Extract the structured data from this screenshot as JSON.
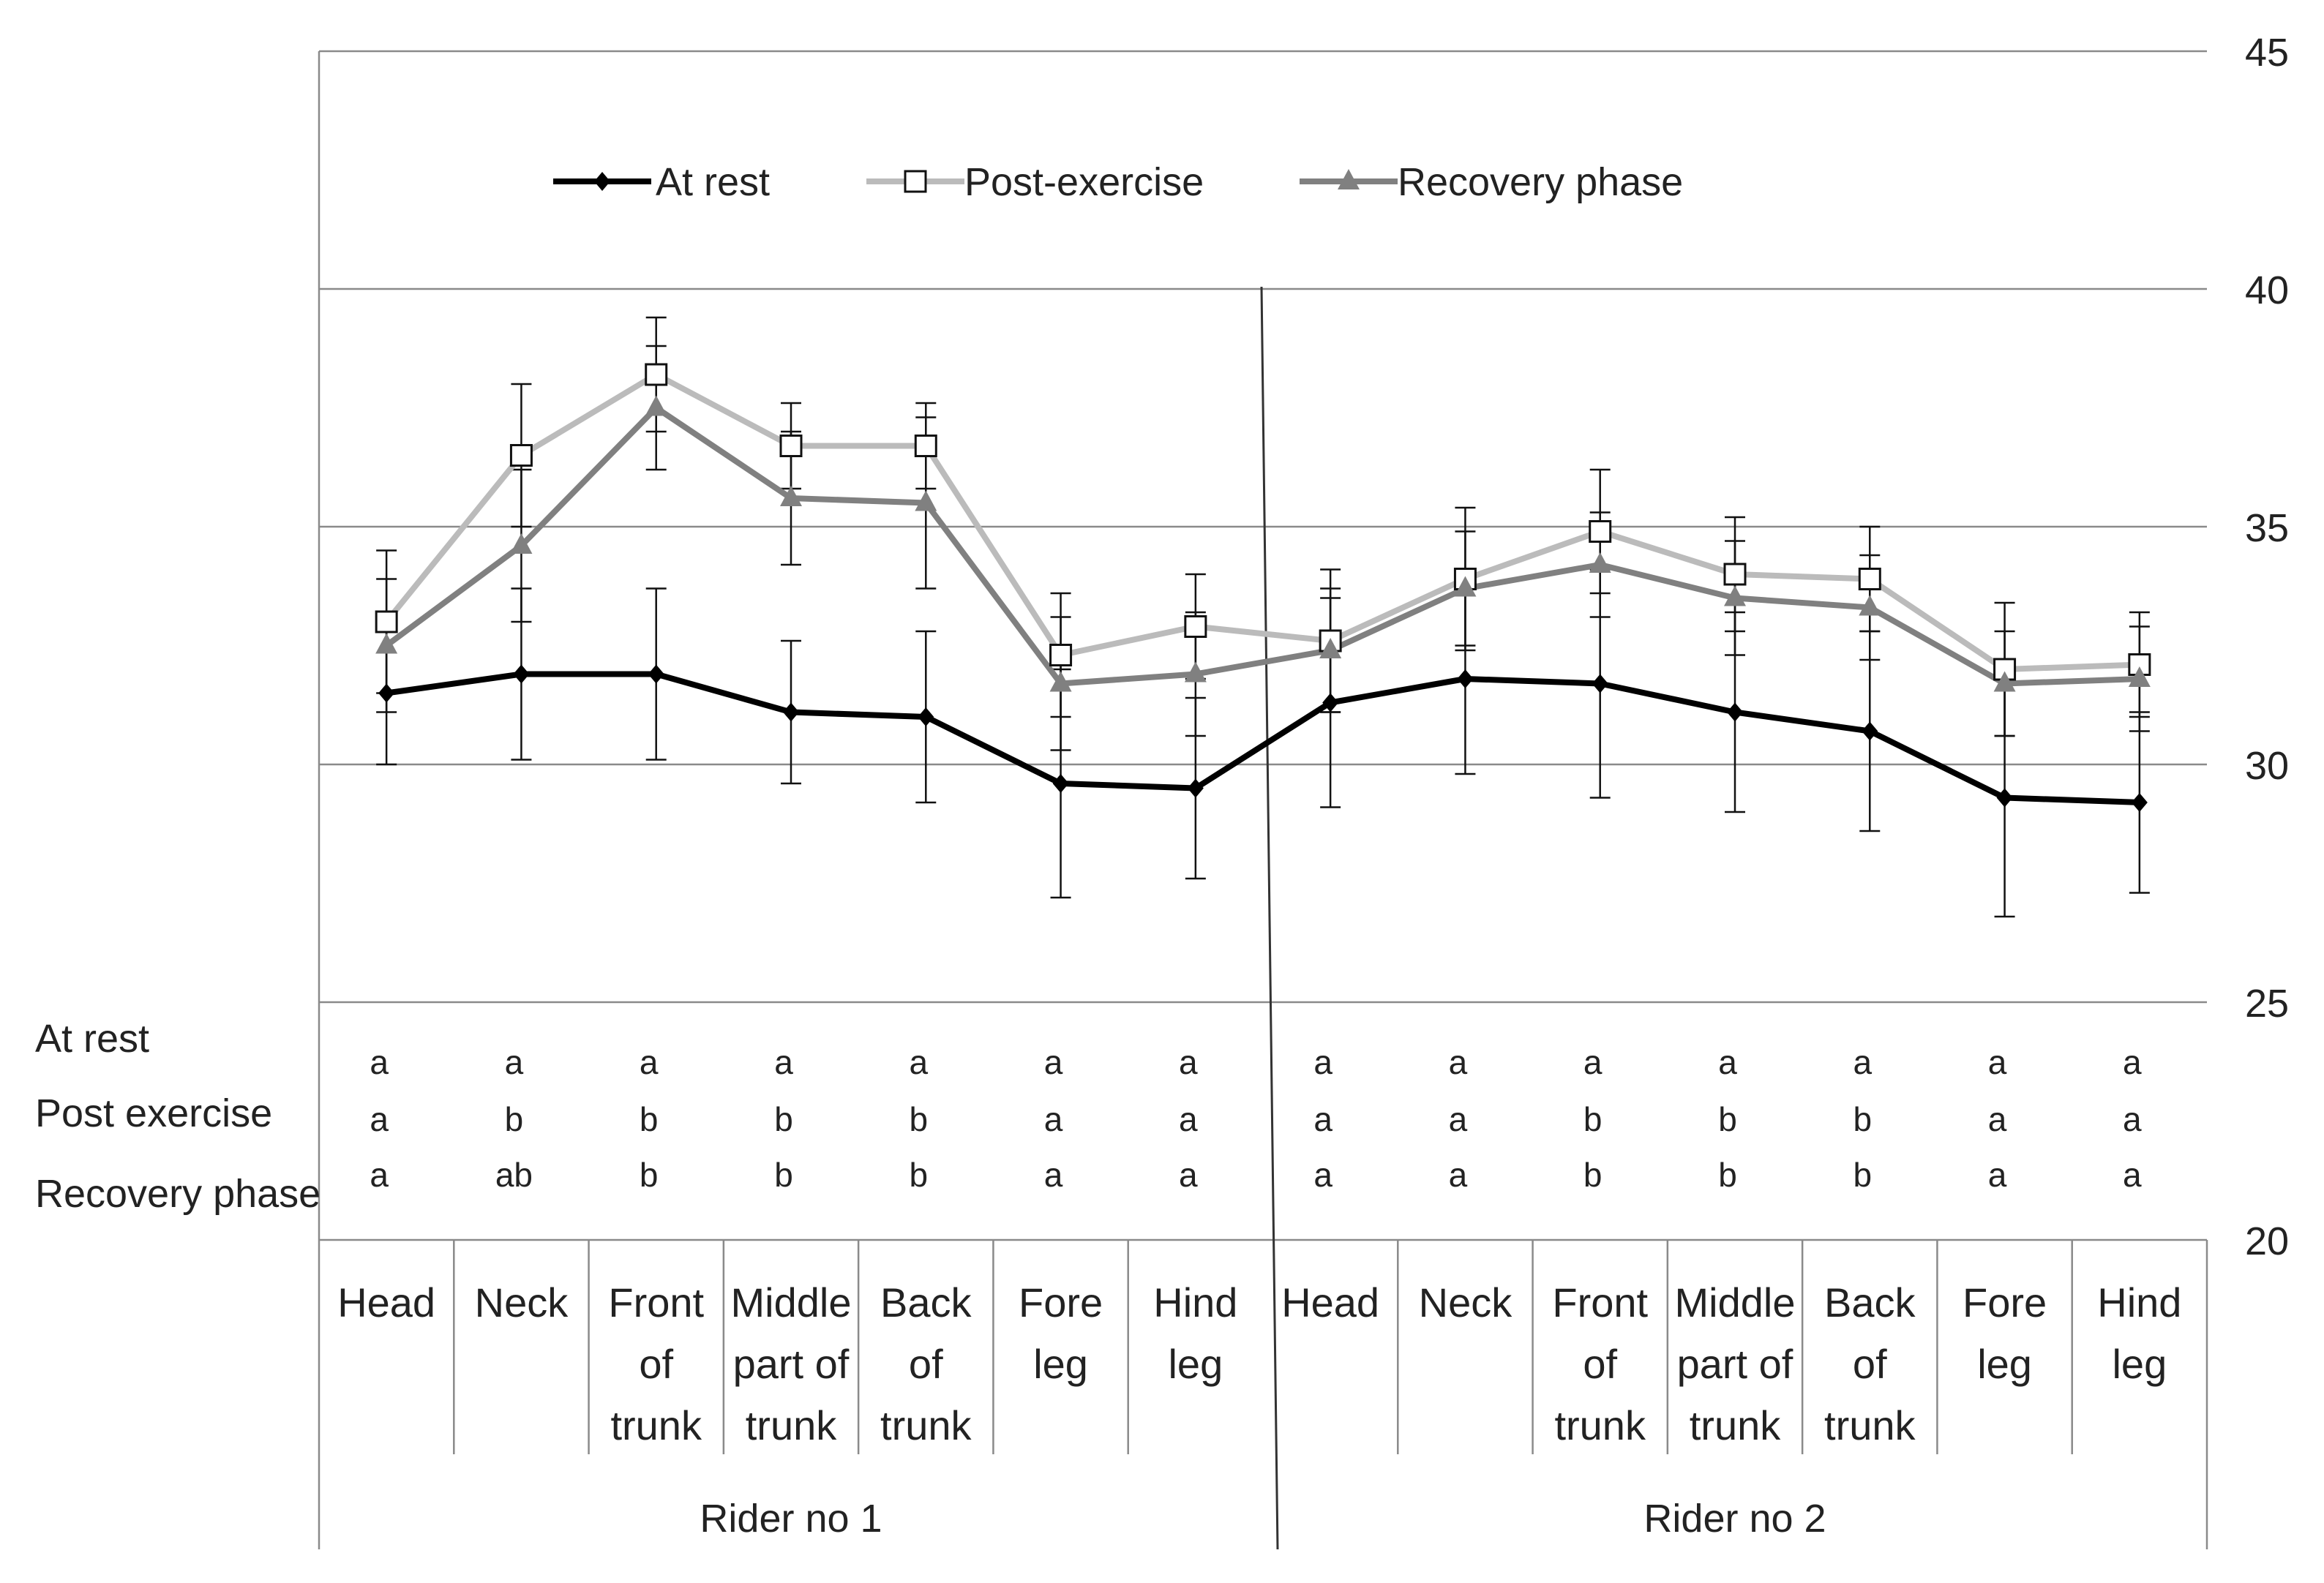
{
  "chart_data": {
    "type": "line",
    "title": "",
    "xlabel": "",
    "ylabel": "",
    "ylim": [
      20,
      45
    ],
    "y_ticks": [
      "45",
      "40",
      "35",
      "30",
      "25",
      "20"
    ],
    "y_gridlines": [
      25,
      30,
      35,
      40,
      45
    ],
    "groups": [
      {
        "name": "Rider no 1",
        "categories": [
          [
            "Head"
          ],
          [
            "Neck"
          ],
          [
            "Front",
            "of",
            "trunk"
          ],
          [
            "Middle",
            "part of",
            "trunk"
          ],
          [
            "Back",
            "of",
            "trunk"
          ],
          [
            "Fore",
            "leg"
          ],
          [
            "Hind",
            "leg"
          ]
        ]
      },
      {
        "name": "Rider no 2",
        "categories": [
          [
            "Head"
          ],
          [
            "Neck"
          ],
          [
            "Front",
            "of",
            "trunk"
          ],
          [
            "Middle",
            "part of",
            "trunk"
          ],
          [
            "Back",
            "of",
            "trunk"
          ],
          [
            "Fore",
            "leg"
          ],
          [
            "Hind",
            "leg"
          ]
        ]
      }
    ],
    "series": [
      {
        "name": "At rest",
        "color": "#000000",
        "marker": "diamond",
        "values": [
          31.5,
          31.9,
          31.9,
          31.1,
          31.0,
          29.6,
          29.5,
          31.3,
          31.8,
          31.7,
          31.1,
          30.7,
          29.3,
          29.2
        ],
        "errors": [
          1.5,
          1.8,
          1.8,
          1.5,
          1.8,
          2.4,
          1.9,
          2.2,
          2.0,
          2.4,
          2.1,
          2.1,
          2.5,
          1.9
        ]
      },
      {
        "name": "Post-exercise",
        "color": "#bbbbbb",
        "marker": "square",
        "values": [
          33.0,
          36.5,
          38.2,
          36.7,
          36.7,
          32.3,
          32.9,
          32.6,
          33.9,
          34.9,
          34.0,
          33.9,
          32.0,
          32.1
        ],
        "errors": [
          1.5,
          1.5,
          1.2,
          0.9,
          0.9,
          1.3,
          1.1,
          1.5,
          1.5,
          1.3,
          1.2,
          1.1,
          1.4,
          1.1
        ]
      },
      {
        "name": "Recovery phase",
        "color": "#808080",
        "marker": "triangle",
        "values": [
          32.5,
          34.6,
          37.5,
          35.6,
          35.5,
          31.7,
          31.9,
          32.4,
          33.7,
          34.2,
          33.5,
          33.3,
          31.7,
          31.8
        ],
        "errors": [
          1.4,
          1.6,
          1.3,
          1.4,
          1.8,
          1.4,
          1.3,
          1.3,
          1.2,
          1.1,
          1.2,
          1.1,
          1.1,
          1.1
        ]
      }
    ],
    "significance": {
      "row_labels": [
        "At rest",
        "Post exercise",
        "Recovery phase"
      ],
      "letters": [
        [
          "a",
          "a",
          "a",
          "a",
          "a",
          "a",
          "a",
          "a",
          "a",
          "a",
          "a",
          "a",
          "a",
          "a"
        ],
        [
          "a",
          "b",
          "b",
          "b",
          "b",
          "a",
          "a",
          "a",
          "a",
          "b",
          "b",
          "b",
          "a",
          "a"
        ],
        [
          "a",
          "ab",
          "b",
          "b",
          "b",
          "a",
          "a",
          "a",
          "a",
          "b",
          "b",
          "b",
          "a",
          "a"
        ]
      ]
    },
    "legend_position": "top-left"
  }
}
